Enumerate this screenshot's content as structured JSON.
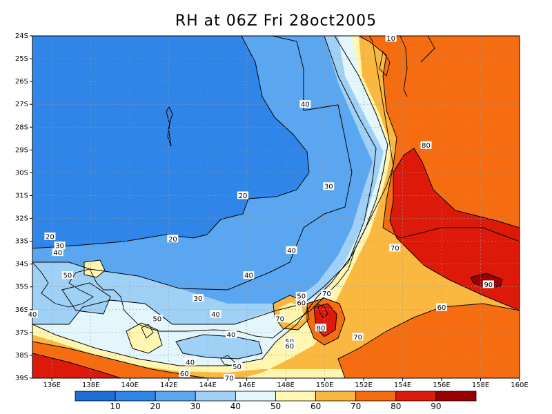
{
  "title": "RH at 06Z Fri 28oct2005",
  "chart_data": {
    "type": "heatmap",
    "variable": "RH",
    "x_ticks": [
      "136E",
      "138E",
      "140E",
      "142E",
      "144E",
      "146E",
      "148E",
      "150E",
      "152E",
      "154E",
      "156E",
      "158E",
      "160E"
    ],
    "y_ticks": [
      "24S",
      "25S",
      "26S",
      "27S",
      "28S",
      "29S",
      "30S",
      "31S",
      "32S",
      "33S",
      "34S",
      "35S",
      "36S",
      "37S",
      "38S",
      "39S"
    ],
    "xlim": [
      135,
      160
    ],
    "ylim": [
      -39,
      -24
    ],
    "grid": true,
    "colorbar": {
      "levels": [
        "10",
        "20",
        "30",
        "40",
        "50",
        "60",
        "70",
        "80",
        "90"
      ],
      "colors": [
        "#1e6ed6",
        "#2f85e8",
        "#5aa6f0",
        "#9fd0f6",
        "#e2f6fc",
        "#fff6b0",
        "#fbb840",
        "#f56d10",
        "#dd1a0a",
        "#9a0000"
      ]
    },
    "contour_labels": [
      {
        "text": "10",
        "lon": 153.4,
        "lat": -24.1
      },
      {
        "text": "40",
        "lon": 149.0,
        "lat": -27.0
      },
      {
        "text": "80",
        "lon": 155.2,
        "lat": -28.8
      },
      {
        "text": "30",
        "lon": 150.2,
        "lat": -30.6
      },
      {
        "text": "20",
        "lon": 145.8,
        "lat": -31.0
      },
      {
        "text": "20",
        "lon": 135.9,
        "lat": -32.8
      },
      {
        "text": "20",
        "lon": 142.2,
        "lat": -32.9
      },
      {
        "text": "30",
        "lon": 136.4,
        "lat": -33.2
      },
      {
        "text": "40",
        "lon": 136.3,
        "lat": -33.5
      },
      {
        "text": "70",
        "lon": 153.6,
        "lat": -33.3
      },
      {
        "text": "40",
        "lon": 148.3,
        "lat": -33.4
      },
      {
        "text": "50",
        "lon": 136.8,
        "lat": -34.5
      },
      {
        "text": "40",
        "lon": 146.1,
        "lat": -34.5
      },
      {
        "text": "90",
        "lon": 158.4,
        "lat": -34.9
      },
      {
        "text": "50",
        "lon": 148.8,
        "lat": -35.4
      },
      {
        "text": "70",
        "lon": 150.1,
        "lat": -35.3
      },
      {
        "text": "60",
        "lon": 148.8,
        "lat": -35.7
      },
      {
        "text": "30",
        "lon": 143.5,
        "lat": -35.5
      },
      {
        "text": "40",
        "lon": 144.4,
        "lat": -36.2
      },
      {
        "text": "60",
        "lon": 156.0,
        "lat": -35.9
      },
      {
        "text": "40",
        "lon": 135.0,
        "lat": -36.2
      },
      {
        "text": "70",
        "lon": 147.7,
        "lat": -36.4
      },
      {
        "text": "50",
        "lon": 141.4,
        "lat": -36.4
      },
      {
        "text": "80",
        "lon": 149.8,
        "lat": -36.8
      },
      {
        "text": "70",
        "lon": 151.7,
        "lat": -37.2
      },
      {
        "text": "40",
        "lon": 145.2,
        "lat": -37.1
      },
      {
        "text": "50",
        "lon": 148.2,
        "lat": -37.4
      },
      {
        "text": "60",
        "lon": 148.2,
        "lat": -37.6
      },
      {
        "text": "40",
        "lon": 143.1,
        "lat": -38.3
      },
      {
        "text": "50",
        "lon": 145.5,
        "lat": -38.5
      },
      {
        "text": "60",
        "lon": 142.8,
        "lat": -38.8
      },
      {
        "text": "70",
        "lon": 145.1,
        "lat": -39.0
      }
    ]
  }
}
